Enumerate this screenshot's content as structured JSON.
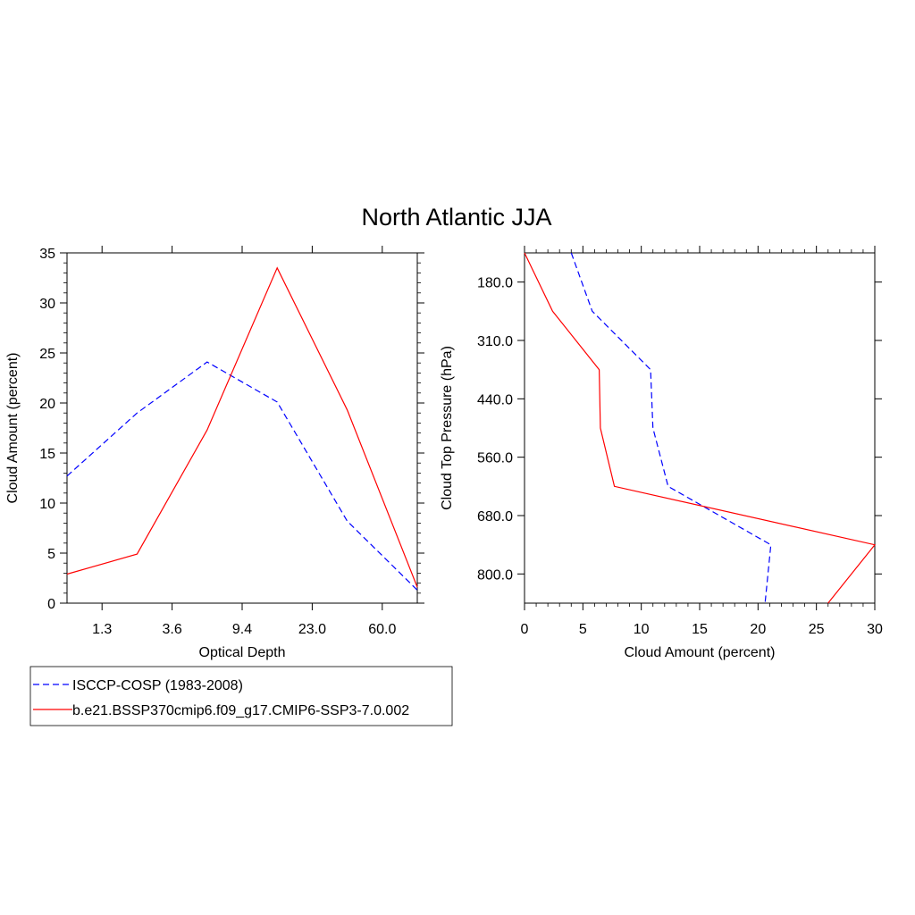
{
  "title": "North Atlantic JJA",
  "chart_data": [
    {
      "type": "line",
      "xlabel": "Optical Depth",
      "ylabel": "Cloud Amount (percent)",
      "x": [
        0.5,
        1.5,
        2.5,
        3.5,
        4.5,
        5.5
      ],
      "x_tick_labels": [
        "1.3",
        "3.6",
        "9.4",
        "23.0",
        "60.0"
      ],
      "xlim": [
        0,
        5
      ],
      "ylim": [
        0,
        35
      ],
      "y_ticks": [
        0,
        5,
        10,
        15,
        20,
        25,
        30,
        35
      ],
      "series": [
        {
          "name": "ISCCP-COSP (1983-2008)",
          "color": "#0000ff",
          "style": "dashed",
          "x": [
            0,
            1,
            2,
            3,
            4,
            5
          ],
          "values": [
            12.7,
            19.0,
            24.1,
            20.1,
            8.2,
            1.3
          ]
        },
        {
          "name": "b.e21.BSSP370cmip6.f09_g17.CMIP6-SSP3-7.0.002",
          "color": "#ff0000",
          "style": "solid",
          "x": [
            0,
            1,
            2,
            3,
            4,
            5
          ],
          "values": [
            2.9,
            4.9,
            17.3,
            33.5,
            19.3,
            1.6
          ]
        }
      ],
      "legend": "below"
    },
    {
      "type": "line",
      "xlabel": "Cloud Amount (percent)",
      "ylabel": "Cloud Top Pressure (hPa)",
      "xlim": [
        0,
        30
      ],
      "x_ticks": [
        0,
        5,
        10,
        15,
        20,
        25,
        30
      ],
      "y_tick_labels": [
        "180.0",
        "310.0",
        "440.0",
        "560.0",
        "680.0",
        "800.0"
      ],
      "y_reversed": true,
      "series": [
        {
          "name": "ISCCP-COSP (1983-2008)",
          "color": "#0000ff",
          "style": "dashed",
          "x": [
            4.0,
            5.8,
            10.8,
            11.0,
            12.3,
            21.1,
            20.6
          ],
          "level": [
            0,
            1,
            2,
            3,
            4,
            5,
            6
          ]
        },
        {
          "name": "b.e21.BSSP370cmip6.f09_g17.CMIP6-SSP3-7.0.002",
          "color": "#ff0000",
          "style": "solid",
          "x": [
            0.0,
            2.4,
            6.4,
            6.5,
            7.7,
            30.0,
            26.0
          ],
          "level": [
            0,
            1,
            2,
            3,
            4,
            5,
            6
          ]
        }
      ]
    }
  ]
}
